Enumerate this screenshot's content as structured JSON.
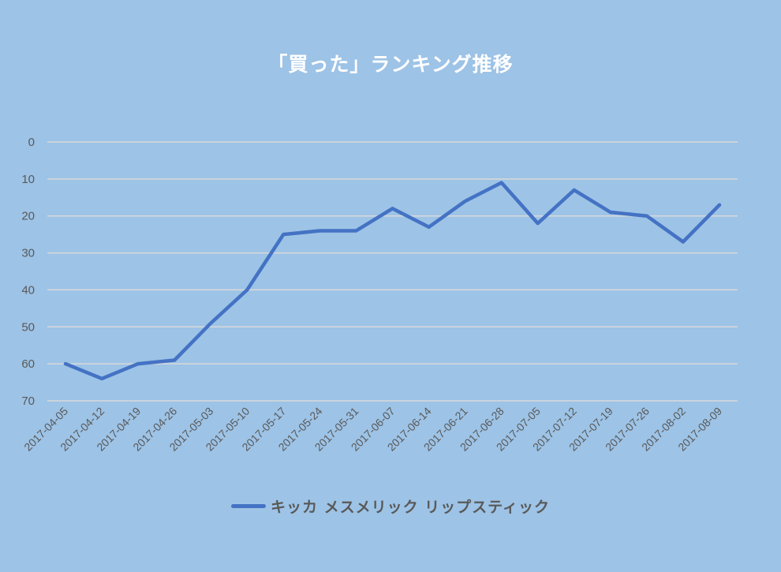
{
  "chart_data": {
    "type": "line",
    "title": "「買った」ランキング推移",
    "xlabel": "",
    "ylabel": "",
    "ylim": [
      0,
      70
    ],
    "y_reversed": true,
    "y_ticks": [
      0,
      10,
      20,
      30,
      40,
      50,
      60,
      70
    ],
    "grid": true,
    "legend_position": "bottom",
    "categories": [
      "2017-04-05",
      "2017-04-12",
      "2017-04-19",
      "2017-04-26",
      "2017-05-03",
      "2017-05-10",
      "2017-05-17",
      "2017-05-24",
      "2017-05-31",
      "2017-06-07",
      "2017-06-14",
      "2017-06-21",
      "2017-06-28",
      "2017-07-05",
      "2017-07-12",
      "2017-07-19",
      "2017-07-26",
      "2017-08-02",
      "2017-08-09"
    ],
    "series": [
      {
        "name": "キッカ メスメリック リップスティック",
        "color": "#4472c4",
        "values": [
          60,
          64,
          60,
          59,
          49,
          40,
          25,
          24,
          24,
          18,
          23,
          16,
          11,
          22,
          13,
          19,
          20,
          27,
          17
        ]
      }
    ]
  },
  "colors": {
    "background": "#9dc3e6",
    "gridline": "#d9d9d9",
    "title": "#ffffff",
    "axis_text": "#595959"
  }
}
